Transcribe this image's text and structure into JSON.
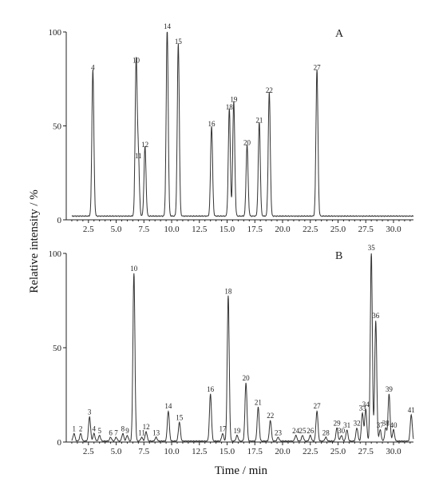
{
  "ylabel": "Relative intensity / %",
  "xlabel": "Time / min",
  "chart_data": [
    {
      "type": "line",
      "panel": "A",
      "xlim": [
        0.5,
        31.8
      ],
      "ylim": [
        0,
        100
      ],
      "x_ticks": [
        "2.5",
        "5.0",
        "7.5",
        "10.0",
        "12.5",
        "15.0",
        "17.5",
        "20.0",
        "22.5",
        "25.0",
        "27.5",
        "30.0"
      ],
      "y_ticks": [
        "0",
        "50",
        "100"
      ],
      "baseline": 2,
      "peaks": [
        {
          "label": "4",
          "rt": 2.9,
          "height": 78
        },
        {
          "label": "10",
          "rt": 6.8,
          "height": 82
        },
        {
          "label": "11",
          "rt": 7.0,
          "height": 31
        },
        {
          "label": "12",
          "rt": 7.6,
          "height": 37
        },
        {
          "label": "14",
          "rt": 9.6,
          "height": 100
        },
        {
          "label": "15",
          "rt": 10.6,
          "height": 92
        },
        {
          "label": "16",
          "rt": 13.6,
          "height": 48
        },
        {
          "label": "18",
          "rt": 15.2,
          "height": 57
        },
        {
          "label": "19",
          "rt": 15.6,
          "height": 61
        },
        {
          "label": "20",
          "rt": 16.8,
          "height": 38
        },
        {
          "label": "21",
          "rt": 17.9,
          "height": 50
        },
        {
          "label": "22",
          "rt": 18.8,
          "height": 66
        },
        {
          "label": "27",
          "rt": 23.1,
          "height": 78
        }
      ]
    },
    {
      "type": "line",
      "panel": "B",
      "xlim": [
        0.5,
        31.8
      ],
      "ylim": [
        0,
        100
      ],
      "x_ticks": [
        "2.5",
        "5.0",
        "7.5",
        "10.0",
        "12.5",
        "15.0",
        "17.5",
        "20.0",
        "22.5",
        "25.0",
        "27.5",
        "30.0"
      ],
      "y_ticks": [
        "0",
        "50",
        "100"
      ],
      "baseline": 0.5,
      "peaks": [
        {
          "label": "1",
          "rt": 1.2,
          "height": 4
        },
        {
          "label": "2",
          "rt": 1.8,
          "height": 4
        },
        {
          "label": "3",
          "rt": 2.6,
          "height": 13
        },
        {
          "label": "4",
          "rt": 3.0,
          "height": 4
        },
        {
          "label": "5",
          "rt": 3.5,
          "height": 3
        },
        {
          "label": "6",
          "rt": 4.5,
          "height": 2
        },
        {
          "label": "7",
          "rt": 5.0,
          "height": 2
        },
        {
          "label": "8",
          "rt": 5.6,
          "height": 4
        },
        {
          "label": "9",
          "rt": 6.0,
          "height": 3
        },
        {
          "label": "10",
          "rt": 6.6,
          "height": 89
        },
        {
          "label": "11",
          "rt": 7.3,
          "height": 2
        },
        {
          "label": "12",
          "rt": 7.7,
          "height": 5
        },
        {
          "label": "13",
          "rt": 8.6,
          "height": 2
        },
        {
          "label": "14",
          "rt": 9.7,
          "height": 16
        },
        {
          "label": "15",
          "rt": 10.7,
          "height": 10
        },
        {
          "label": "16",
          "rt": 13.5,
          "height": 25
        },
        {
          "label": "17",
          "rt": 14.6,
          "height": 4
        },
        {
          "label": "18",
          "rt": 15.1,
          "height": 77
        },
        {
          "label": "19",
          "rt": 15.9,
          "height": 3
        },
        {
          "label": "20",
          "rt": 16.7,
          "height": 31
        },
        {
          "label": "21",
          "rt": 17.8,
          "height": 18
        },
        {
          "label": "22",
          "rt": 18.9,
          "height": 11
        },
        {
          "label": "23",
          "rt": 19.6,
          "height": 2
        },
        {
          "label": "24",
          "rt": 21.2,
          "height": 3
        },
        {
          "label": "25",
          "rt": 21.8,
          "height": 3
        },
        {
          "label": "26",
          "rt": 22.5,
          "height": 3
        },
        {
          "label": "27",
          "rt": 23.1,
          "height": 16
        },
        {
          "label": "28",
          "rt": 23.9,
          "height": 2
        },
        {
          "label": "29",
          "rt": 24.9,
          "height": 7
        },
        {
          "label": "30",
          "rt": 25.3,
          "height": 3
        },
        {
          "label": "31",
          "rt": 25.8,
          "height": 6
        },
        {
          "label": "32",
          "rt": 26.7,
          "height": 7
        },
        {
          "label": "33",
          "rt": 27.2,
          "height": 15
        },
        {
          "label": "34",
          "rt": 27.5,
          "height": 17
        },
        {
          "label": "35",
          "rt": 28.0,
          "height": 100
        },
        {
          "label": "36",
          "rt": 28.4,
          "height": 64
        },
        {
          "label": "37",
          "rt": 28.8,
          "height": 6
        },
        {
          "label": "38",
          "rt": 29.3,
          "height": 7
        },
        {
          "label": "39",
          "rt": 29.6,
          "height": 25
        },
        {
          "label": "40",
          "rt": 30.0,
          "height": 6
        },
        {
          "label": "41",
          "rt": 31.6,
          "height": 14
        }
      ]
    }
  ]
}
